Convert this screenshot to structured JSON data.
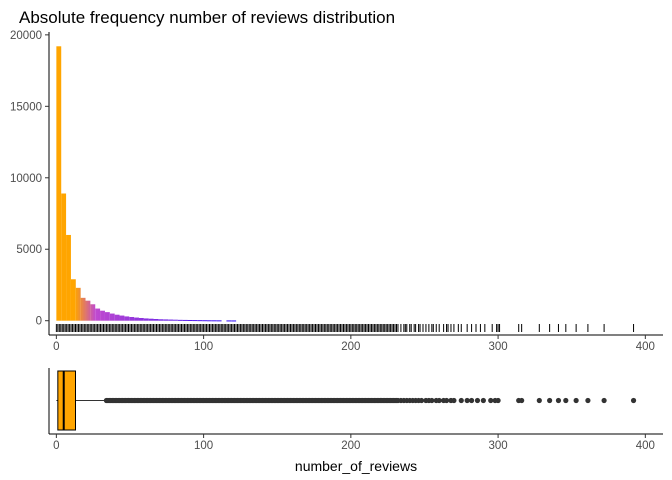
{
  "chart_data": [
    {
      "type": "histogram",
      "title": "Absolute frequency number of reviews distribution",
      "xlabel": "",
      "ylabel": "",
      "xlim": [
        -5,
        412
      ],
      "ylim": [
        -1000,
        20200
      ],
      "x_ticks": [
        0,
        100,
        200,
        300,
        400
      ],
      "y_ticks": [
        0,
        5000,
        10000,
        15000,
        20000
      ],
      "bin_width": 3.3,
      "fill_gradient": [
        "#FFA500",
        "#C04ACF",
        "#1A00FF"
      ],
      "bins": [
        {
          "start": 0,
          "count": 19200
        },
        {
          "start": 3.3,
          "count": 8900
        },
        {
          "start": 6.6,
          "count": 6000
        },
        {
          "start": 9.9,
          "count": 2900
        },
        {
          "start": 13.2,
          "count": 2300
        },
        {
          "start": 16.5,
          "count": 1600
        },
        {
          "start": 19.8,
          "count": 1400
        },
        {
          "start": 23.1,
          "count": 1150
        },
        {
          "start": 26.4,
          "count": 850
        },
        {
          "start": 29.7,
          "count": 700
        },
        {
          "start": 33,
          "count": 600
        },
        {
          "start": 36.3,
          "count": 500
        },
        {
          "start": 39.6,
          "count": 420
        },
        {
          "start": 42.9,
          "count": 360
        },
        {
          "start": 46.2,
          "count": 300
        },
        {
          "start": 49.5,
          "count": 260
        },
        {
          "start": 52.8,
          "count": 220
        },
        {
          "start": 56.1,
          "count": 190
        },
        {
          "start": 59.4,
          "count": 160
        },
        {
          "start": 62.7,
          "count": 140
        },
        {
          "start": 66,
          "count": 120
        },
        {
          "start": 69.3,
          "count": 100
        },
        {
          "start": 72.6,
          "count": 90
        },
        {
          "start": 75.9,
          "count": 80
        },
        {
          "start": 79.2,
          "count": 70
        },
        {
          "start": 82.5,
          "count": 60
        },
        {
          "start": 85.8,
          "count": 55
        },
        {
          "start": 89.1,
          "count": 50
        },
        {
          "start": 92.4,
          "count": 45
        },
        {
          "start": 95.7,
          "count": 40
        },
        {
          "start": 99,
          "count": 35
        },
        {
          "start": 102.3,
          "count": 30
        },
        {
          "start": 105.6,
          "count": 28
        },
        {
          "start": 108.9,
          "count": 25
        },
        {
          "start": 112.2,
          "count": 0
        },
        {
          "start": 115.5,
          "count": 20
        },
        {
          "start": 118.8,
          "count": 18
        }
      ],
      "rug_values": [
        0,
        1,
        2,
        3,
        4,
        5,
        6,
        7,
        8,
        9,
        10,
        11,
        12,
        13,
        14,
        15,
        16,
        17,
        18,
        19,
        20,
        21,
        22,
        23,
        24,
        25,
        26,
        27,
        28,
        29,
        30,
        31,
        32,
        33,
        34,
        35,
        36,
        37,
        38,
        39,
        40,
        41,
        42,
        43,
        44,
        45,
        46,
        47,
        48,
        49,
        50,
        51,
        52,
        53,
        54,
        55,
        56,
        57,
        58,
        59,
        60,
        61,
        62,
        63,
        64,
        65,
        66,
        67,
        68,
        69,
        70,
        71,
        72,
        73,
        74,
        75,
        76,
        77,
        78,
        79,
        80,
        81,
        82,
        83,
        84,
        85,
        86,
        87,
        88,
        89,
        90,
        91,
        92,
        93,
        94,
        95,
        96,
        97,
        98,
        99,
        100,
        101,
        102,
        103,
        104,
        105,
        106,
        107,
        108,
        109,
        110,
        111,
        112,
        113,
        114,
        115,
        116,
        117,
        118,
        119,
        120,
        121,
        122,
        123,
        124,
        125,
        126,
        127,
        128,
        129,
        130,
        131,
        132,
        133,
        134,
        135,
        136,
        137,
        138,
        139,
        140,
        141,
        142,
        143,
        144,
        145,
        146,
        147,
        148,
        149,
        150,
        151,
        152,
        153,
        154,
        155,
        156,
        157,
        158,
        159,
        160,
        161,
        162,
        163,
        164,
        165,
        166,
        167,
        168,
        169,
        170,
        171,
        172,
        173,
        174,
        175,
        176,
        177,
        178,
        179,
        180,
        181,
        182,
        183,
        184,
        185,
        186,
        187,
        188,
        189,
        190,
        191,
        192,
        193,
        194,
        195,
        196,
        197,
        198,
        199,
        200,
        201,
        202,
        203,
        204,
        205,
        206,
        207,
        208,
        209,
        210,
        211,
        212,
        213,
        214,
        215,
        216,
        217,
        218,
        219,
        220,
        221,
        222,
        223,
        224,
        225,
        226,
        227,
        228,
        229,
        230,
        231,
        232,
        234,
        236,
        237,
        238,
        240,
        241,
        243,
        244,
        246,
        247,
        249,
        251,
        253,
        255,
        256,
        258,
        260,
        263,
        265,
        266,
        268,
        270,
        273,
        275,
        279,
        282,
        285,
        288,
        291,
        296,
        299,
        300,
        301,
        314,
        316,
        328,
        335,
        341,
        346,
        353,
        361,
        372,
        392
      ]
    },
    {
      "type": "boxplot",
      "xlabel": "number_of_reviews",
      "xlim": [
        -5,
        412
      ],
      "x_ticks": [
        0,
        100,
        200,
        300,
        400
      ],
      "box_fill": "#FFA500",
      "box_outline": "#000000",
      "outlier_color": "#333333",
      "min": 0,
      "q1": 1,
      "median": 5,
      "q3": 13,
      "whisker_high": 33,
      "outliers": [
        34,
        35,
        36,
        37,
        38,
        39,
        40,
        41,
        42,
        43,
        44,
        45,
        46,
        47,
        48,
        49,
        50,
        51,
        52,
        53,
        54,
        55,
        56,
        57,
        58,
        59,
        60,
        61,
        62,
        63,
        64,
        65,
        66,
        67,
        68,
        69,
        70,
        71,
        72,
        73,
        74,
        75,
        76,
        77,
        78,
        79,
        80,
        81,
        82,
        83,
        84,
        85,
        86,
        87,
        88,
        89,
        90,
        91,
        92,
        93,
        94,
        95,
        96,
        97,
        98,
        99,
        100,
        101,
        102,
        103,
        104,
        105,
        106,
        107,
        108,
        109,
        110,
        111,
        112,
        113,
        114,
        115,
        116,
        117,
        118,
        119,
        120,
        121,
        122,
        123,
        124,
        125,
        126,
        127,
        128,
        129,
        130,
        131,
        132,
        133,
        134,
        135,
        136,
        137,
        138,
        139,
        140,
        141,
        142,
        143,
        144,
        145,
        146,
        147,
        148,
        149,
        150,
        151,
        152,
        153,
        154,
        155,
        156,
        157,
        158,
        159,
        160,
        161,
        162,
        163,
        164,
        165,
        166,
        167,
        168,
        169,
        170,
        171,
        172,
        173,
        174,
        175,
        176,
        177,
        178,
        179,
        180,
        181,
        182,
        183,
        184,
        185,
        186,
        187,
        188,
        189,
        190,
        191,
        192,
        193,
        194,
        195,
        196,
        197,
        198,
        199,
        200,
        201,
        202,
        203,
        204,
        205,
        206,
        207,
        208,
        209,
        210,
        211,
        212,
        213,
        214,
        215,
        216,
        217,
        218,
        219,
        220,
        221,
        222,
        223,
        224,
        225,
        226,
        227,
        228,
        229,
        230,
        231,
        232,
        234,
        236,
        238,
        240,
        242,
        244,
        246,
        248,
        251,
        253,
        255,
        258,
        260,
        263,
        265,
        268,
        270,
        275,
        279,
        282,
        286,
        290,
        295,
        298,
        300,
        314,
        316,
        328,
        335,
        341,
        346,
        353,
        361,
        372,
        392
      ]
    }
  ]
}
